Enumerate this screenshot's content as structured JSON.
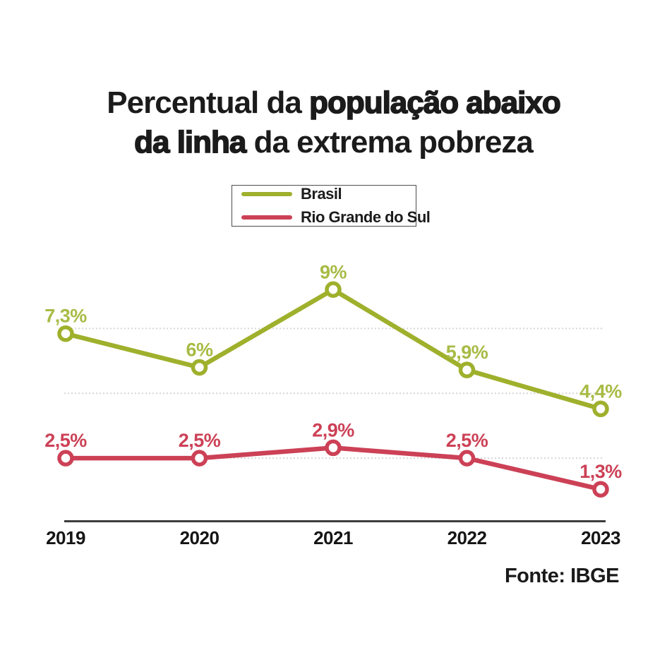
{
  "title": {
    "line1_regular": "Percentual da ",
    "line1_bold": "população abaixo",
    "line2_bold": "da linha",
    "line2_regular": " da extrema pobreza"
  },
  "legend": {
    "items": [
      {
        "label": "Brasil",
        "color": "#9fb02c"
      },
      {
        "label": "Rio Grande do Sul",
        "color": "#cc4156"
      }
    ]
  },
  "source": {
    "label": "Fonte: IBGE"
  },
  "chart_data": {
    "type": "line",
    "title": "Percentual da população abaixo da linha da extrema pobreza",
    "source": "Fonte: IBGE",
    "categories": [
      "2019",
      "2020",
      "2021",
      "2022",
      "2023"
    ],
    "series": [
      {
        "name": "Brasil",
        "color": "#9fb02c",
        "label_color": "#a7bb45",
        "values": [
          7.3,
          6,
          9,
          5.9,
          4.4
        ],
        "labels": [
          "7,3%",
          "6%",
          "9%",
          "5,9%",
          "4,4%"
        ]
      },
      {
        "name": "Rio Grande do Sul",
        "color": "#cc4156",
        "label_color": "#cc4156",
        "values": [
          2.5,
          2.5,
          2.9,
          2.5,
          1.3
        ],
        "labels": [
          "2,5%",
          "2,5%",
          "2,9%",
          "2,5%",
          "1,3%"
        ]
      }
    ],
    "gridlines": [
      7.5,
      5.0,
      2.5
    ],
    "ylim": [
      0,
      10
    ],
    "grid_on": true,
    "grid_color": "#d6d6d6",
    "axis_color": "#3d3d3d",
    "tick_label_color": "#151515",
    "legend_position": "top"
  }
}
